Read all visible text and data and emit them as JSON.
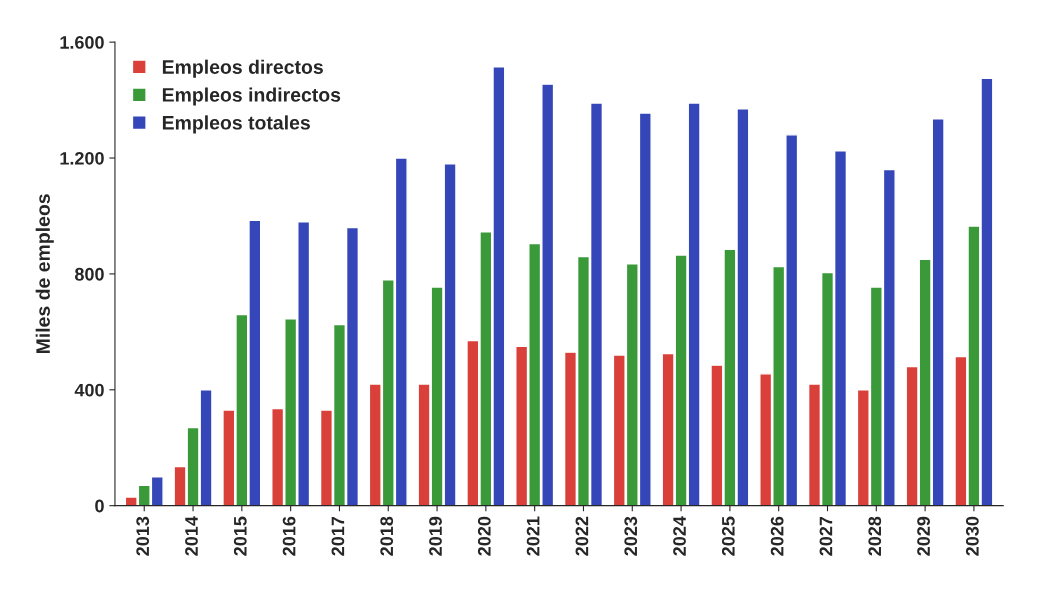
{
  "chart_data": {
    "type": "bar",
    "ylabel": "Miles de empleos",
    "categories": [
      "2013",
      "2014",
      "2015",
      "2016",
      "2017",
      "2018",
      "2019",
      "2020",
      "2021",
      "2022",
      "2023",
      "2024",
      "2025",
      "2026",
      "2027",
      "2028",
      "2029",
      "2030"
    ],
    "series": [
      {
        "name": "Empleos directos",
        "color": "#d9403a",
        "values": [
          30,
          135,
          330,
          335,
          330,
          420,
          420,
          570,
          550,
          530,
          520,
          525,
          485,
          455,
          420,
          400,
          480,
          515
        ]
      },
      {
        "name": "Empleos indirectos",
        "color": "#3a9a3a",
        "values": [
          70,
          270,
          660,
          645,
          625,
          780,
          755,
          945,
          905,
          860,
          835,
          865,
          885,
          825,
          805,
          755,
          850,
          965
        ]
      },
      {
        "name": "Empleos totales",
        "color": "#3446b8",
        "values": [
          100,
          400,
          985,
          980,
          960,
          1200,
          1180,
          1515,
          1455,
          1390,
          1355,
          1390,
          1370,
          1280,
          1225,
          1160,
          1335,
          1475
        ]
      }
    ],
    "ylim": [
      0,
      1600
    ],
    "yticks": [
      0,
      400,
      800,
      {
        "value": 1200,
        "label": "1.200"
      },
      {
        "value": 1600,
        "label": "1.600"
      }
    ],
    "grid": false,
    "legend": "top left"
  }
}
